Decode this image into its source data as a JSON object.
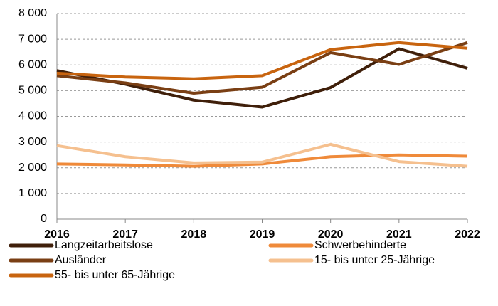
{
  "chart_data": {
    "type": "line",
    "categories": [
      "2016",
      "2017",
      "2018",
      "2019",
      "2020",
      "2021",
      "2022"
    ],
    "series": [
      {
        "name": "Langzeitarbeitslose",
        "color": "#3f1f0a",
        "values": [
          5780,
          5250,
          4630,
          4360,
          5120,
          6630,
          5870
        ]
      },
      {
        "name": "Schwerbehinderte",
        "color": "#ef8a3a",
        "values": [
          2150,
          2110,
          2060,
          2150,
          2430,
          2500,
          2450
        ]
      },
      {
        "name": "Ausländer",
        "color": "#7a3f14",
        "values": [
          5580,
          5300,
          4900,
          5130,
          6480,
          6020,
          6870
        ]
      },
      {
        "name": "15- bis unter 25-Jährige",
        "color": "#f5c08f",
        "values": [
          2860,
          2430,
          2190,
          2220,
          2910,
          2240,
          2060
        ]
      },
      {
        "name": "55- bis unter 65-Jährige",
        "color": "#c8640f",
        "values": [
          5680,
          5530,
          5460,
          5580,
          6600,
          6870,
          6650
        ]
      }
    ],
    "ylim": [
      0,
      8000
    ],
    "yticks": [
      0,
      {
        "value": 1000,
        "label": "1 000"
      },
      {
        "value": 2000,
        "label": "2 000"
      },
      {
        "value": 3000,
        "label": "3 000"
      },
      {
        "value": 4000,
        "label": "4 000"
      },
      {
        "value": 5000,
        "label": "5 000"
      },
      {
        "value": 6000,
        "label": "6 000"
      },
      {
        "value": 7000,
        "label": "7 000"
      },
      {
        "value": 8000,
        "label": "8 000"
      }
    ],
    "grid": true
  }
}
